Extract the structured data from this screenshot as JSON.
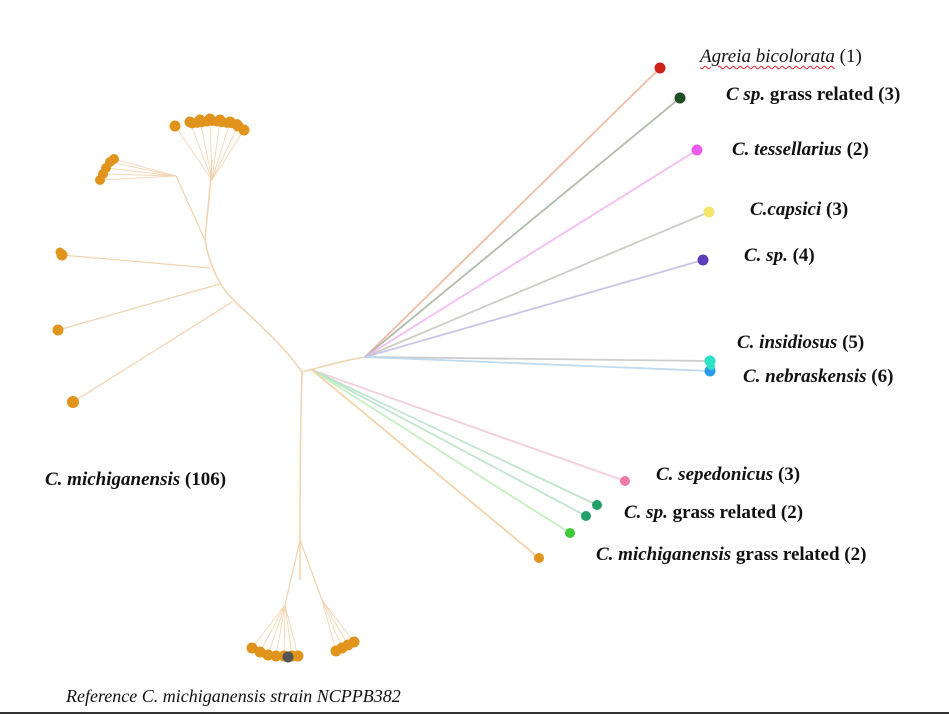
{
  "labels": {
    "agreia": {
      "italic": "Agreia bicolorata",
      "plain": " (1)"
    },
    "csp_grass3": {
      "italic": "C sp.",
      "plain": " grass related (3)"
    },
    "tessellarius": {
      "italic": "C. tessellarius",
      "plain": " (2)"
    },
    "capsici": {
      "italic": "C.capsici",
      "plain": " (3)"
    },
    "csp4": {
      "italic": "C. sp.",
      "plain": " (4)"
    },
    "insidiosus": {
      "italic": "C. insidiosus",
      "plain": " (5)"
    },
    "nebraskensis": {
      "italic": "C. nebraskensis",
      "plain": " (6)"
    },
    "sepedonicus": {
      "italic": "C. sepedonicus",
      "plain": " (3)"
    },
    "csp_grass2": {
      "italic": "C. sp.",
      "plain": " grass related (2)"
    },
    "cmich_grass2": {
      "italic": "C. michiganensis",
      "plain": " grass related (2)"
    },
    "cmich106": {
      "italic": "C. michiganensis",
      "plain": " (106)"
    }
  },
  "caption": "Reference C. michiganensis strain NCPPB382",
  "colors": {
    "michiganensis": "#e0941c",
    "branch": "#f3d2ad",
    "agreia": "#d0201a",
    "csp_grass3": "#1f4d22",
    "tessellarius": "#ee5cee",
    "capsici": "#f2e66a",
    "csp4": "#5a3fb8",
    "insidiosus": "#2ee0c8",
    "nebraskensis": "#2a9be6",
    "sepedonicus": "#ee7aa8",
    "csp_grass2": "#22a06a",
    "cmich_grass2": "#3fcc3a",
    "reference": "#555555"
  }
}
